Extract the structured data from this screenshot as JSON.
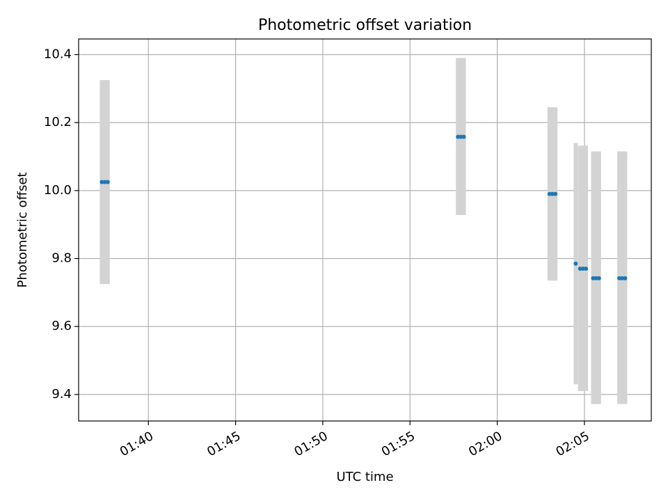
{
  "chart_data": {
    "type": "scatter",
    "title": "Photometric offset variation",
    "xlabel": "UTC time",
    "ylabel": "Photometric offset",
    "x_axis_kind": "time",
    "xlim": [
      "01:36:00",
      "02:08:50"
    ],
    "ylim": [
      9.322,
      10.446
    ],
    "xticks": [
      "01:40",
      "01:45",
      "01:50",
      "01:55",
      "02:00",
      "02:05"
    ],
    "yticks": [
      9.4,
      9.6,
      9.8,
      10.0,
      10.2,
      10.4
    ],
    "grid": true,
    "error_bar_color": "#d3d3d3",
    "marker_color": "#1f77b4",
    "series": [
      {
        "points": [
          {
            "x": "01:37:20",
            "y": 10.025,
            "err_low": 9.725,
            "err_high": 10.325
          },
          {
            "x": "01:37:30",
            "y": 10.025,
            "err_low": 9.725,
            "err_high": 10.325
          },
          {
            "x": "01:37:40",
            "y": 10.025,
            "err_low": 9.725,
            "err_high": 10.325
          },
          {
            "x": "01:57:45",
            "y": 10.158,
            "err_low": 9.928,
            "err_high": 10.39
          },
          {
            "x": "01:57:55",
            "y": 10.158,
            "err_low": 9.928,
            "err_high": 10.39
          },
          {
            "x": "01:58:05",
            "y": 10.158,
            "err_low": 9.928,
            "err_high": 10.39
          },
          {
            "x": "02:03:00",
            "y": 9.99,
            "err_low": 9.735,
            "err_high": 10.245
          },
          {
            "x": "02:03:10",
            "y": 9.99,
            "err_low": 9.735,
            "err_high": 10.245
          },
          {
            "x": "02:03:20",
            "y": 9.99,
            "err_low": 9.735,
            "err_high": 10.245
          },
          {
            "x": "02:04:30",
            "y": 9.785,
            "err_low": 9.43,
            "err_high": 10.14
          },
          {
            "x": "02:04:45",
            "y": 9.77,
            "err_low": 9.41,
            "err_high": 10.132
          },
          {
            "x": "02:04:55",
            "y": 9.77,
            "err_low": 9.41,
            "err_high": 10.132
          },
          {
            "x": "02:05:05",
            "y": 9.77,
            "err_low": 9.41,
            "err_high": 10.132
          },
          {
            "x": "02:05:30",
            "y": 9.742,
            "err_low": 9.372,
            "err_high": 10.115
          },
          {
            "x": "02:05:40",
            "y": 9.742,
            "err_low": 9.372,
            "err_high": 10.115
          },
          {
            "x": "02:05:50",
            "y": 9.742,
            "err_low": 9.372,
            "err_high": 10.115
          },
          {
            "x": "02:07:00",
            "y": 9.742,
            "err_low": 9.372,
            "err_high": 10.115
          },
          {
            "x": "02:07:10",
            "y": 9.742,
            "err_low": 9.372,
            "err_high": 10.115
          },
          {
            "x": "02:07:20",
            "y": 9.742,
            "err_low": 9.372,
            "err_high": 10.115
          }
        ]
      }
    ]
  }
}
